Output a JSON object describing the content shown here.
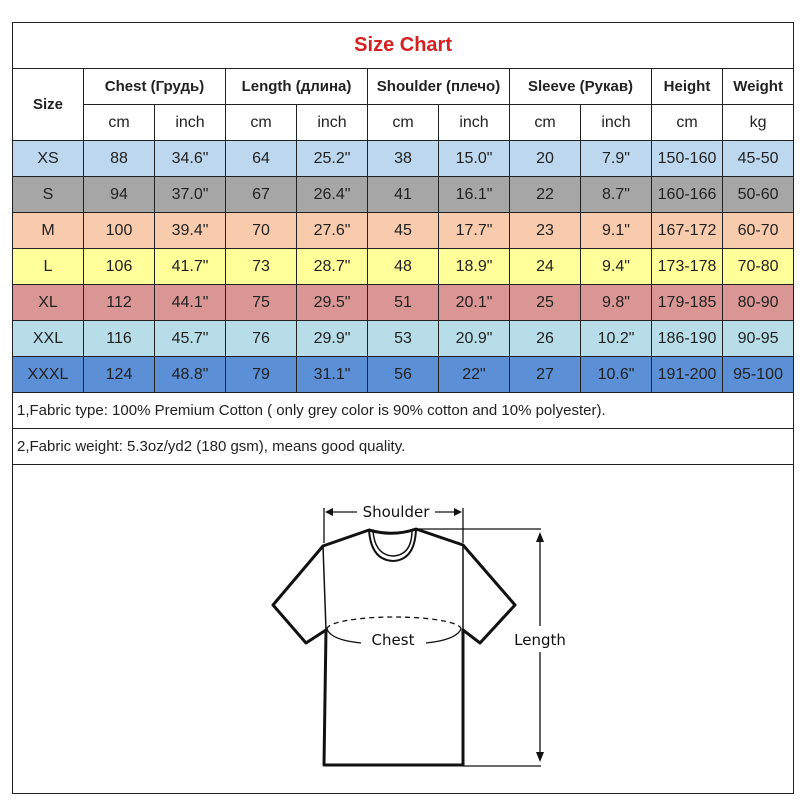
{
  "title": "Size Chart",
  "headers": {
    "size": "Size",
    "chest": "Chest  (Грудь)",
    "length": "Length (длина)",
    "shoulder": "Shoulder (плечо)",
    "sleeve": "Sleeve (Рукав)",
    "height": "Height",
    "weight": "Weight"
  },
  "units": [
    "cm",
    "inch",
    "cm",
    "inch",
    "cm",
    "inch",
    "cm",
    "inch",
    "cm",
    "kg"
  ],
  "rows": [
    {
      "size": "XS",
      "color": "#bdd7ee",
      "values": [
        "88",
        "34.6\"",
        "64",
        "25.2\"",
        "38",
        "15.0\"",
        "20",
        "7.9\"",
        "150-160",
        "45-50"
      ]
    },
    {
      "size": "S",
      "color": "#a6a6a6",
      "values": [
        "94",
        "37.0\"",
        "67",
        "26.4\"",
        "41",
        "16.1\"",
        "22",
        "8.7\"",
        "160-166",
        "50-60"
      ]
    },
    {
      "size": "M",
      "color": "#f8cbad",
      "values": [
        "100",
        "39.4\"",
        "70",
        "27.6\"",
        "45",
        "17.7\"",
        "23",
        "9.1\"",
        "167-172",
        "60-70"
      ]
    },
    {
      "size": "L",
      "color": "#ffff99",
      "values": [
        "106",
        "41.7\"",
        "73",
        "28.7\"",
        "48",
        "18.9\"",
        "24",
        "9.4\"",
        "173-178",
        "70-80"
      ]
    },
    {
      "size": "XL",
      "color": "#da9694",
      "values": [
        "112",
        "44.1\"",
        "75",
        "29.5\"",
        "51",
        "20.1\"",
        "25",
        "9.8\"",
        "179-185",
        "80-90"
      ]
    },
    {
      "size": "XXL",
      "color": "#b7dee8",
      "values": [
        "116",
        "45.7\"",
        "76",
        "29.9\"",
        "53",
        "20.9\"",
        "26",
        "10.2\"",
        "186-190",
        "90-95"
      ]
    },
    {
      "size": "XXXL",
      "color": "#5b8fd6",
      "values": [
        "124",
        "48.8\"",
        "79",
        "31.1\"",
        "56",
        "22\"",
        "27",
        "10.6\"",
        "191-200",
        "95-100"
      ]
    }
  ],
  "notes": [
    "1,Fabric type: 100% Premium Cotton ( only grey color is 90% cotton and 10% polyester).",
    "2,Fabric weight: 5.3oz/yd2 (180 gsm), means good quality."
  ],
  "diagram": {
    "shoulder": "Shoulder",
    "chest": "Chest",
    "length": "Length"
  }
}
